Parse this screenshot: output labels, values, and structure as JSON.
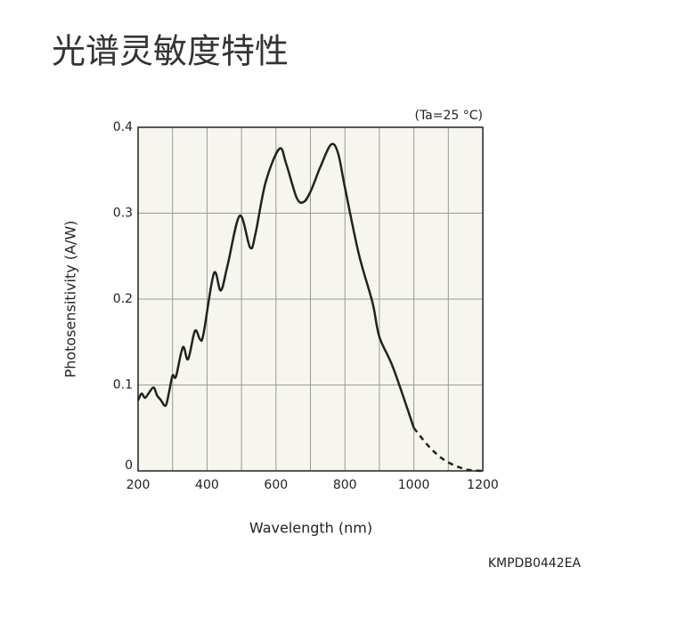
{
  "chart_data": {
    "type": "line",
    "title": "光谱灵敏度特性",
    "annotation": "(Ta=25 °C)",
    "code": "KMPDB0442EA",
    "xlabel": "Wavelength (nm)",
    "ylabel": "Photosensitivity (A/W)",
    "xlim": [
      200,
      1200
    ],
    "ylim": [
      0,
      0.4
    ],
    "xticks": [
      200,
      400,
      600,
      800,
      1000,
      1200
    ],
    "yticks": [
      0,
      0.1,
      0.2,
      0.3,
      0.4
    ],
    "xgrid": [
      200,
      300,
      400,
      500,
      600,
      700,
      800,
      900,
      1000,
      1100,
      1200
    ],
    "grid": true,
    "background": "#f7f6ee",
    "series": [
      {
        "color": "#222",
        "linestyle": "solid",
        "x": [
          200,
          210,
          220,
          230,
          245,
          255,
          265,
          280,
          290,
          300,
          310,
          330,
          345,
          365,
          380,
          390,
          420,
          440,
          460,
          495,
          525,
          540,
          570,
          610,
          630,
          660,
          680,
          700,
          730,
          760,
          780,
          800,
          840,
          880,
          900,
          940,
          1000
        ],
        "values": [
          0.082,
          0.09,
          0.085,
          0.09,
          0.097,
          0.088,
          0.083,
          0.076,
          0.092,
          0.111,
          0.11,
          0.144,
          0.13,
          0.163,
          0.153,
          0.16,
          0.23,
          0.21,
          0.24,
          0.297,
          0.26,
          0.275,
          0.336,
          0.375,
          0.357,
          0.318,
          0.313,
          0.325,
          0.355,
          0.38,
          0.37,
          0.33,
          0.253,
          0.196,
          0.156,
          0.12,
          0.05
        ]
      },
      {
        "color": "#222",
        "linestyle": "dashed",
        "x": [
          1000,
          1040,
          1080,
          1120,
          1160,
          1200
        ],
        "values": [
          0.05,
          0.03,
          0.015,
          0.006,
          0.001,
          0
        ]
      }
    ]
  }
}
